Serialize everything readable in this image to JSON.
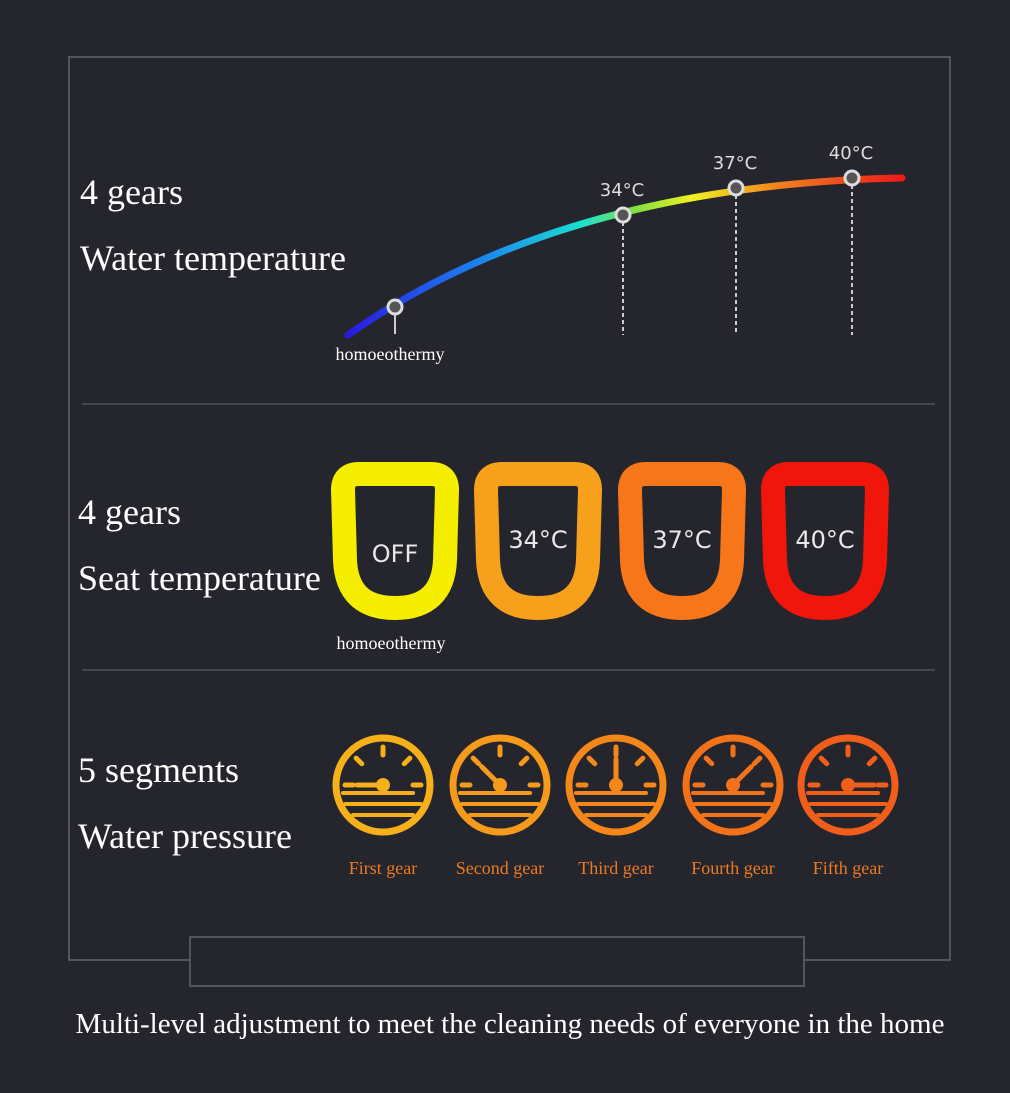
{
  "sections": [
    {
      "title": "4 gears",
      "subtitle": "Water temperature",
      "start_label": "homoeothermy",
      "levels": [
        "34°C",
        "37°C",
        "40°C"
      ]
    },
    {
      "title": "4 gears",
      "subtitle": "Seat temperature",
      "levels": [
        "OFF",
        "34°C",
        "37°C",
        "40°C"
      ],
      "caption": "homoeothermy"
    },
    {
      "title": "5 segments",
      "subtitle": "Water pressure",
      "levels": [
        "First gear",
        "Second gear",
        "Third gear",
        "Fourth gear",
        "Fifth gear"
      ]
    }
  ],
  "footer": "Multi-level adjustment to meet the cleaning needs of everyone in the home"
}
